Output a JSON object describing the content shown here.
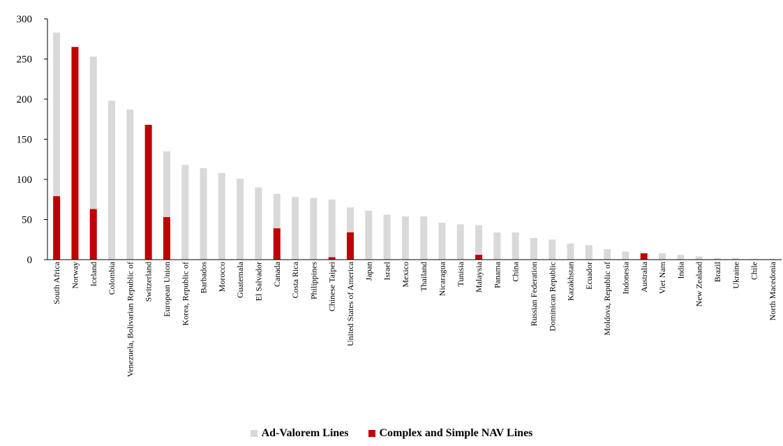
{
  "chart_data": {
    "type": "bar",
    "stacked": false,
    "overlap": true,
    "categories": [
      "South Africa",
      "Norway",
      "Iceland",
      "Colombia",
      "Venezuela, Bolivarian Republic of",
      "Switzerland",
      "European Union",
      "Korea, Republic of",
      "Barbados",
      "Morocco",
      "Guatemala",
      "El Salvador",
      "Canada",
      "Costa Rica",
      "Philippines",
      "Chinese Taipei",
      "United States of America",
      "Japan",
      "Israel",
      "Mexico",
      "Thailand",
      "Nicaragua",
      "Tunisia",
      "Malaysia",
      "Panama",
      "China",
      "Russian Federation",
      "Dominican Republic",
      "Kazakhstan",
      "Ecuador",
      "Moldova, Republic of",
      "Indonesia",
      "Australia",
      "Viet Nam",
      "India",
      "New Zealand",
      "Brazil",
      "Ukraine",
      "Chile",
      "North Macedonia"
    ],
    "series": [
      {
        "name": "Ad-Valorem Lines",
        "color": "#d9d9d9",
        "values": [
          283,
          0,
          253,
          198,
          187,
          0,
          135,
          118,
          114,
          108,
          101,
          90,
          82,
          78,
          77,
          75,
          65,
          61,
          56,
          54,
          54,
          46,
          44,
          43,
          34,
          34,
          27,
          25,
          20,
          18,
          13,
          10,
          0,
          8,
          6,
          4,
          2,
          2,
          1,
          1
        ]
      },
      {
        "name": "Complex and Simple NAV Lines",
        "color": "#c00000",
        "values": [
          79,
          265,
          63,
          0,
          0,
          168,
          53,
          0,
          0,
          0,
          0,
          0,
          39,
          0,
          0,
          3,
          34,
          0,
          0,
          0,
          0,
          0,
          0,
          6,
          0,
          0,
          0,
          0,
          0,
          0,
          0,
          0,
          8,
          0,
          0,
          0,
          0,
          0,
          0,
          0
        ]
      }
    ],
    "ylim": [
      0,
      300
    ],
    "yticks": [
      "0",
      "50",
      "100",
      "150",
      "200",
      "250",
      "300"
    ],
    "title": "",
    "xlabel": "",
    "ylabel": "",
    "grid": false,
    "legend_position": "bottom"
  }
}
